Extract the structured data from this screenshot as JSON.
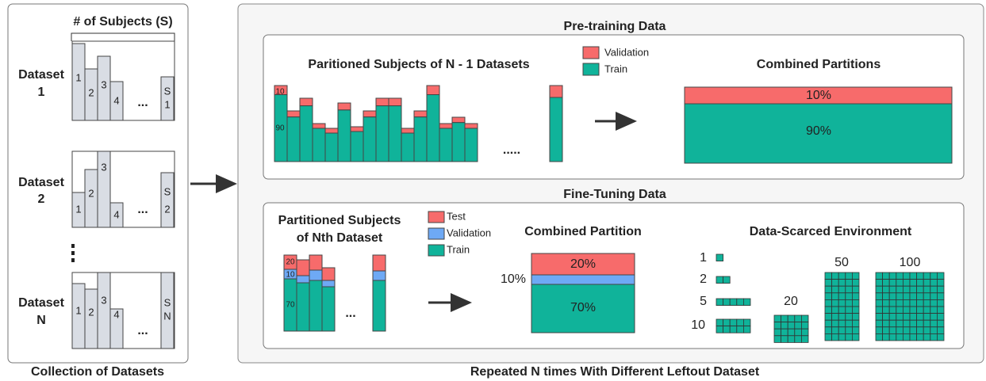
{
  "collection": {
    "caption": "Collection of Datasets",
    "header": "# of Subjects (S)",
    "ellipsis": "...",
    "datasets": [
      {
        "name": "Dataset",
        "index": "1",
        "bars": [
          "1",
          "2",
          "3",
          "4"
        ],
        "last_bar": [
          "S",
          "1"
        ]
      },
      {
        "name": "Dataset",
        "index": "2",
        "bars": [
          "1",
          "2",
          "3",
          "4"
        ],
        "last_bar": [
          "S",
          "2"
        ]
      },
      {
        "name": "Dataset",
        "index": "N",
        "bars": [
          "1",
          "2",
          "3",
          "4"
        ],
        "last_bar": [
          "S",
          "N"
        ]
      }
    ]
  },
  "pretraining": {
    "title": "Pre-training Data",
    "subjects_title": "Paritioned Subjects of N - 1 Datasets",
    "legend": [
      "Validation",
      "Train"
    ],
    "bar_labels": [
      "10",
      "90"
    ],
    "ellipsis": ".....",
    "combined_title": "Combined Partitions",
    "combined": [
      "10%",
      "90%"
    ]
  },
  "finetuning": {
    "title": "Fine-Tuning Data",
    "subjects_title": [
      "Partitioned Subjects",
      "of Nth Dataset"
    ],
    "legend": [
      "Test",
      "Validation",
      "Train"
    ],
    "bar_labels": [
      "20",
      "10",
      "70"
    ],
    "ellipsis": "...",
    "combined_title": "Combined Partition",
    "combined": [
      "20%",
      "10%",
      "70%"
    ],
    "scarce_title": "Data-Scarced Environment",
    "scarce_sizes": [
      "1",
      "2",
      "5",
      "10",
      "20",
      "50",
      "100"
    ]
  },
  "caption": "Repeated N times With Different Leftout Dataset"
}
